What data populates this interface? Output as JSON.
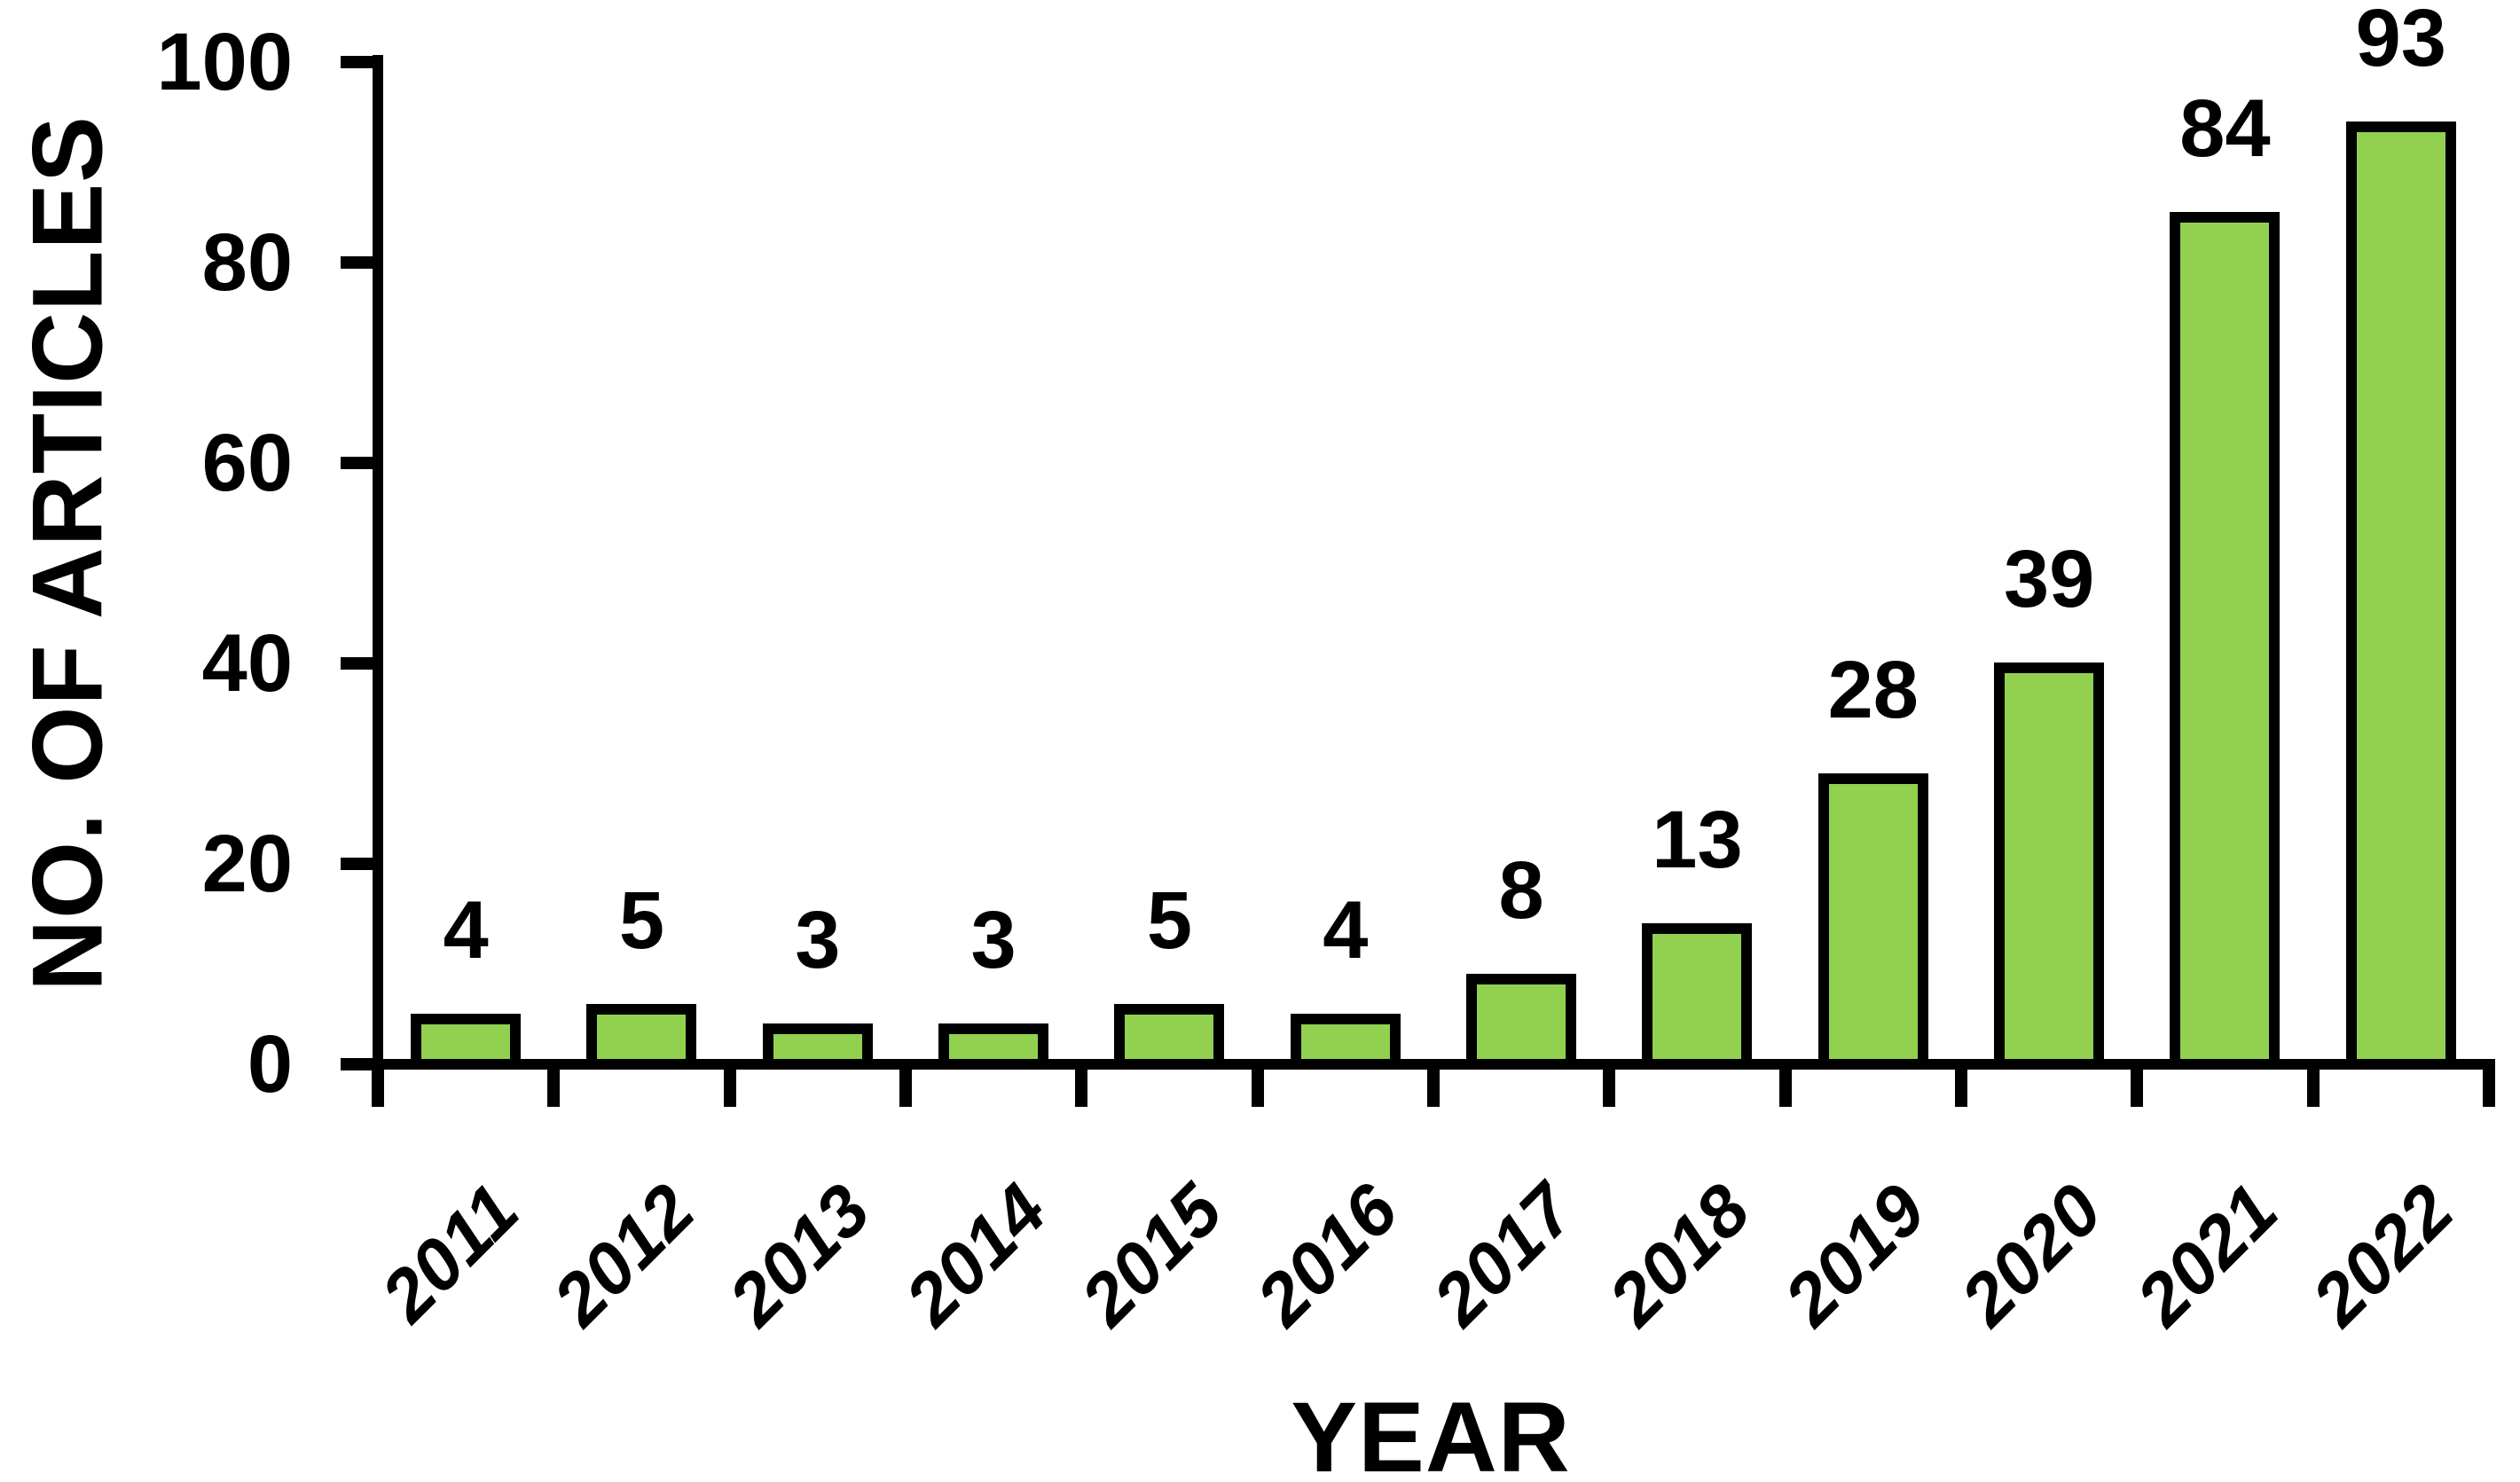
{
  "chart_data": {
    "type": "bar",
    "categories": [
      "2011",
      "2012",
      "2013",
      "2014",
      "2015",
      "2016",
      "2017",
      "2018",
      "2019",
      "2020",
      "2021",
      "2022"
    ],
    "values": [
      4,
      5,
      3,
      3,
      5,
      4,
      8,
      13,
      28,
      39,
      84,
      93
    ],
    "title": "",
    "xlabel": "YEAR",
    "ylabel": "NO. OF ARTICLES",
    "ylim": [
      0,
      100
    ],
    "yticks": [
      0,
      20,
      40,
      60,
      80,
      100
    ],
    "data_labels": [
      4,
      5,
      3,
      3,
      5,
      4,
      8,
      13,
      28,
      39,
      84,
      93
    ],
    "bar_fill_color": "#92D050",
    "bar_border_color": "#000000",
    "axis_color": "#000000",
    "text_color": "#000000",
    "background_color": "#ffffff",
    "grid": "off",
    "legend": "none",
    "x_tick_label_rotation_deg": 45
  }
}
